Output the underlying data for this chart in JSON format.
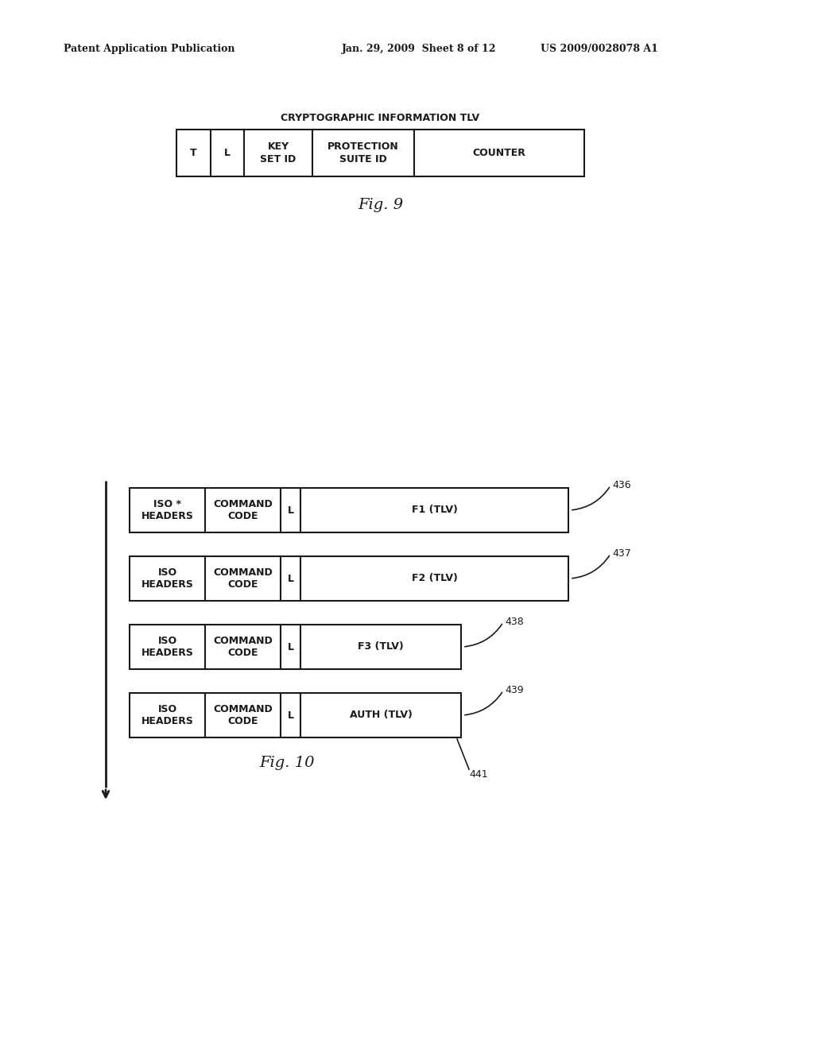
{
  "background_color": "#ffffff",
  "header_left": "Patent Application Publication",
  "header_mid": "Jan. 29, 2009  Sheet 8 of 12",
  "header_right": "US 2009/0028078 A1",
  "fig9_title": "CRYPTOGRAPHIC INFORMATION TLV",
  "fig9_cells": [
    "T",
    "L",
    "KEY\nSET ID",
    "PROTECTION\nSUITE ID",
    "COUNTER"
  ],
  "fig9_proportions": [
    0.083,
    0.083,
    0.167,
    0.25,
    0.417
  ],
  "fig9_caption": "Fig. 9",
  "fig10_rows": [
    {
      "cells": [
        "ISO *\nHEADERS",
        "COMMAND\nCODE",
        "L",
        "F1 (TLV)"
      ],
      "label": "436",
      "wide_last": true
    },
    {
      "cells": [
        "ISO\nHEADERS",
        "COMMAND\nCODE",
        "L",
        "F2 (TLV)"
      ],
      "label": "437",
      "wide_last": true
    },
    {
      "cells": [
        "ISO\nHEADERS",
        "COMMAND\nCODE",
        "L",
        "F3 (TLV)"
      ],
      "label": "438",
      "wide_last": false
    },
    {
      "cells": [
        "ISO\nHEADERS",
        "COMMAND\nCODE",
        "L",
        "AUTH (TLV)"
      ],
      "label": "439",
      "wide_last": false
    }
  ],
  "fig10_caption": "Fig. 10",
  "fig10_extra_label": "441",
  "font_size_header": 9,
  "font_size_cell": 9,
  "font_size_caption": 14,
  "font_size_title": 9
}
